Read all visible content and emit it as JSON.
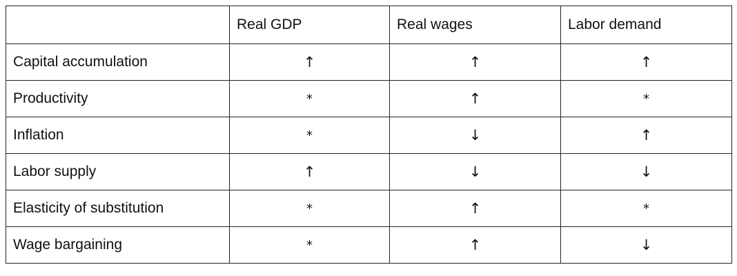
{
  "table": {
    "corner": "",
    "columns": [
      "Real GDP",
      "Real wages",
      "Labor demand"
    ],
    "rows": [
      {
        "label": "Capital accumulation",
        "cells": [
          "↑",
          "↑",
          "↑"
        ]
      },
      {
        "label": "Productivity",
        "cells": [
          "*",
          "↑",
          "*"
        ]
      },
      {
        "label": "Inflation",
        "cells": [
          "*",
          "↓",
          "↑"
        ]
      },
      {
        "label": "Labor supply",
        "cells": [
          "↑",
          "↓",
          "↓"
        ]
      },
      {
        "label": "Elasticity of substitution",
        "cells": [
          "*",
          "↑",
          "*"
        ]
      },
      {
        "label": "Wage bargaining",
        "cells": [
          "*",
          "↑",
          "↓"
        ]
      }
    ]
  }
}
